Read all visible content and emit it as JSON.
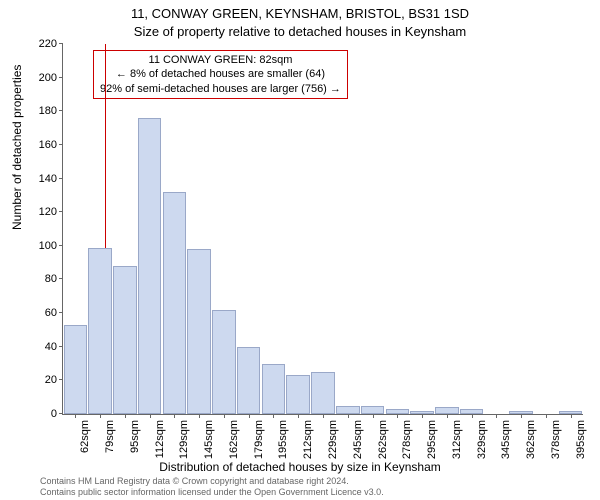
{
  "titles": {
    "line1": "11, CONWAY GREEN, KEYNSHAM, BRISTOL, BS31 1SD",
    "line2": "Size of property relative to detached houses in Keynsham"
  },
  "ylabel": "Number of detached properties",
  "xlabel": "Distribution of detached houses by size in Keynsham",
  "footnote1": "Contains HM Land Registry data © Crown copyright and database right 2024.",
  "footnote2": "Contains public sector information licensed under the Open Government Licence v3.0.",
  "annot": {
    "line1": "11 CONWAY GREEN: 82sqm",
    "line2": "← 8% of detached houses are smaller (64)",
    "line3": "92% of semi-detached houses are larger (756) →"
  },
  "chart": {
    "type": "histogram",
    "ylim": [
      0,
      220
    ],
    "ytick_step": 20,
    "yticks": [
      0,
      20,
      40,
      60,
      80,
      100,
      120,
      140,
      160,
      180,
      200,
      220
    ],
    "xcats": [
      "62sqm",
      "79sqm",
      "95sqm",
      "112sqm",
      "129sqm",
      "145sqm",
      "162sqm",
      "179sqm",
      "195sqm",
      "212sqm",
      "229sqm",
      "245sqm",
      "262sqm",
      "278sqm",
      "295sqm",
      "312sqm",
      "329sqm",
      "345sqm",
      "362sqm",
      "378sqm",
      "395sqm"
    ],
    "values": [
      53,
      99,
      88,
      176,
      132,
      98,
      62,
      40,
      30,
      23,
      25,
      5,
      5,
      3,
      2,
      4,
      3,
      0,
      2,
      0,
      2
    ],
    "bar_color": "#cdd9ef",
    "bar_border": "#9aa8c8",
    "background_color": "#ffffff",
    "axis_color": "#666666",
    "vline_x_sqm": 82,
    "vline_color": "#cc0000",
    "annot_border": "#cc0000",
    "title_fontsize": 13,
    "label_fontsize": 12,
    "tick_fontsize": 11
  }
}
